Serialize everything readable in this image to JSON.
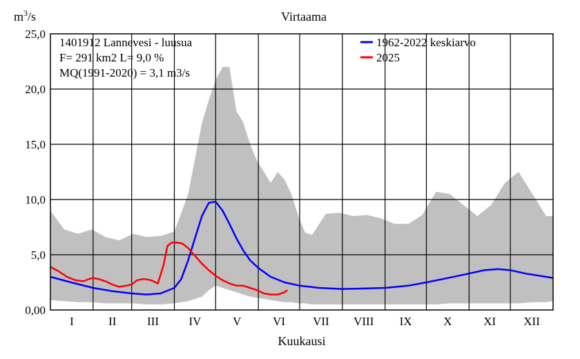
{
  "chart_data": {
    "type": "line",
    "title": "Virtaama",
    "xlabel": "Kuukausi",
    "ylabel": "m3/s",
    "ylabel_base": "m",
    "ylabel_sup": "3",
    "ylabel_suffix": "/s",
    "ylim": [
      0,
      25
    ],
    "yticks": [
      "0,00",
      "5,0",
      "10,0",
      "15,0",
      "20,0",
      "25,0"
    ],
    "ytick_values": [
      0,
      5,
      10,
      15,
      20,
      25
    ],
    "xlim": [
      0,
      365
    ],
    "categories": [
      "I",
      "II",
      "III",
      "IV",
      "V",
      "VI",
      "VII",
      "VIII",
      "IX",
      "X",
      "XI",
      "XII"
    ],
    "month_starts": [
      0,
      31,
      59,
      90,
      120,
      151,
      181,
      212,
      243,
      273,
      304,
      334,
      365
    ],
    "info_lines": [
      "1401912 Lannevesi - luusua",
      "F=    291 km2 L=  9,0 %",
      "MQ(1991-2020) = 3,1 m3/s"
    ],
    "grid": true,
    "legend_position": "top-right",
    "range_band": {
      "color": "#c0c0c0",
      "x": [
        0,
        10,
        20,
        30,
        40,
        50,
        55,
        60,
        70,
        80,
        90,
        100,
        110,
        115,
        120,
        125,
        130,
        135,
        140,
        145,
        150,
        155,
        160,
        165,
        170,
        175,
        180,
        185,
        190,
        200,
        210,
        220,
        230,
        240,
        250,
        260,
        270,
        280,
        290,
        300,
        310,
        320,
        330,
        340,
        350,
        360,
        365
      ],
      "upper": [
        9,
        7.3,
        6.9,
        7.3,
        6.6,
        6.3,
        6.6,
        6.9,
        6.6,
        6.7,
        7.1,
        10.5,
        16.9,
        19,
        20.8,
        22,
        22,
        18,
        17,
        15,
        13.5,
        12.5,
        11.5,
        12.5,
        11.8,
        10.5,
        8.5,
        7,
        6.8,
        8.7,
        8.8,
        8.5,
        8.6,
        8.3,
        7.8,
        7.8,
        8.6,
        10.7,
        10.5,
        9.5,
        8.5,
        9.5,
        11.5,
        12.5,
        10.5,
        8.5,
        8.5
      ],
      "lower": [
        0.9,
        0.8,
        0.7,
        0.7,
        0.6,
        0.6,
        0.6,
        0.6,
        0.5,
        0.5,
        0.6,
        0.8,
        1.2,
        1.8,
        2.2,
        2.0,
        1.8,
        1.6,
        1.4,
        1.2,
        1.1,
        1.0,
        0.9,
        0.8,
        0.7,
        0.7,
        0.6,
        0.6,
        0.5,
        0.5,
        0.5,
        0.5,
        0.5,
        0.5,
        0.5,
        0.5,
        0.5,
        0.5,
        0.6,
        0.6,
        0.6,
        0.6,
        0.6,
        0.6,
        0.7,
        0.7,
        0.8
      ]
    },
    "series": [
      {
        "name": "1962-2022 keskiarvo",
        "color": "#0000ff",
        "x": [
          0,
          15,
          31,
          45,
          59,
          70,
          80,
          90,
          95,
          100,
          105,
          110,
          115,
          120,
          125,
          130,
          135,
          140,
          145,
          151,
          160,
          170,
          181,
          195,
          212,
          230,
          243,
          260,
          273,
          285,
          304,
          315,
          325,
          334,
          345,
          355,
          365
        ],
        "values": [
          3.0,
          2.5,
          2.0,
          1.7,
          1.5,
          1.4,
          1.5,
          2.0,
          2.8,
          4.5,
          6.5,
          8.5,
          9.7,
          9.8,
          9.0,
          7.8,
          6.5,
          5.4,
          4.5,
          3.8,
          3.0,
          2.5,
          2.2,
          2.0,
          1.9,
          1.95,
          2.0,
          2.2,
          2.5,
          2.8,
          3.3,
          3.6,
          3.7,
          3.6,
          3.3,
          3.1,
          2.9
        ]
      },
      {
        "name": "2025",
        "color": "#ff0000",
        "x": [
          0,
          6,
          12,
          18,
          24,
          28,
          31,
          35,
          40,
          45,
          50,
          55,
          59,
          63,
          68,
          73,
          78,
          82,
          85,
          88,
          92,
          96,
          100,
          105,
          110,
          115,
          120,
          125,
          130,
          135,
          140,
          145,
          150,
          155,
          160,
          165,
          170,
          172
        ],
        "values": [
          3.9,
          3.5,
          3.0,
          2.7,
          2.6,
          2.8,
          2.9,
          2.8,
          2.6,
          2.3,
          2.1,
          2.2,
          2.3,
          2.7,
          2.8,
          2.7,
          2.4,
          4.0,
          5.8,
          6.1,
          6.1,
          6.0,
          5.6,
          4.9,
          4.2,
          3.6,
          3.1,
          2.7,
          2.4,
          2.2,
          2.2,
          2.0,
          1.8,
          1.5,
          1.4,
          1.4,
          1.6,
          1.8
        ]
      }
    ]
  }
}
